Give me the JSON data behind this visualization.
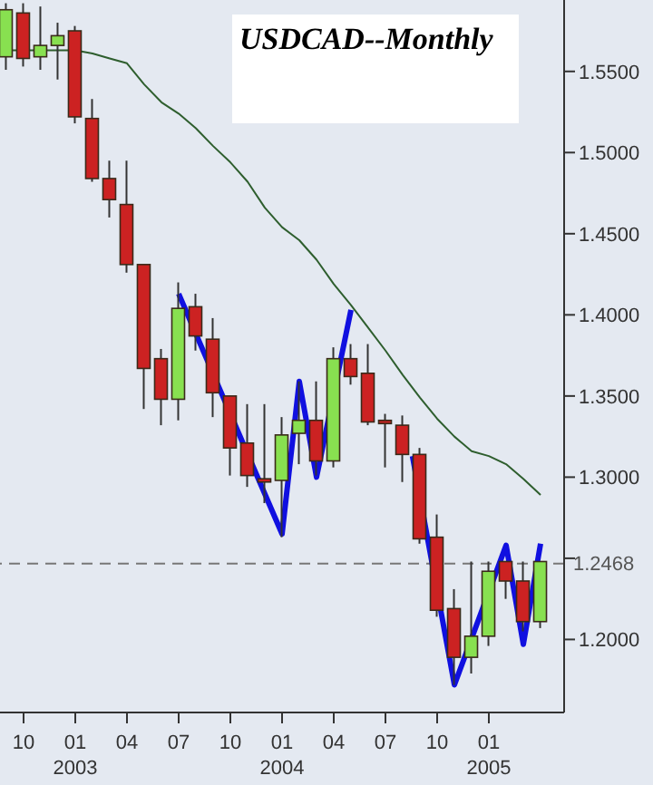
{
  "chart_data": {
    "type": "candlestick",
    "title": "USDCAD--Monthly",
    "x": [
      "2002-09",
      "2002-10",
      "2002-11",
      "2002-12",
      "2003-01",
      "2003-02",
      "2003-03",
      "2003-04",
      "2003-05",
      "2003-06",
      "2003-07",
      "2003-08",
      "2003-09",
      "2003-10",
      "2003-11",
      "2003-12",
      "2004-01",
      "2004-02",
      "2004-03",
      "2004-04",
      "2004-05",
      "2004-06",
      "2004-07",
      "2004-08",
      "2004-09",
      "2004-10",
      "2004-11",
      "2004-12",
      "2005-01",
      "2005-02",
      "2005-03",
      "2005-04"
    ],
    "ohlc": [
      [
        1.559,
        1.592,
        1.551,
        1.588
      ],
      [
        1.586,
        1.592,
        1.553,
        1.558
      ],
      [
        1.559,
        1.59,
        1.551,
        1.566
      ],
      [
        1.566,
        1.58,
        1.545,
        1.572
      ],
      [
        1.575,
        1.578,
        1.518,
        1.522
      ],
      [
        1.521,
        1.533,
        1.482,
        1.484
      ],
      [
        1.484,
        1.495,
        1.46,
        1.471
      ],
      [
        1.468,
        1.495,
        1.426,
        1.431
      ],
      [
        1.431,
        1.431,
        1.342,
        1.367
      ],
      [
        1.373,
        1.379,
        1.332,
        1.348
      ],
      [
        1.348,
        1.42,
        1.335,
        1.404
      ],
      [
        1.405,
        1.413,
        1.378,
        1.387
      ],
      [
        1.385,
        1.398,
        1.337,
        1.352
      ],
      [
        1.35,
        1.35,
        1.301,
        1.318
      ],
      [
        1.321,
        1.345,
        1.294,
        1.301
      ],
      [
        1.299,
        1.345,
        1.284,
        1.297
      ],
      [
        1.298,
        1.337,
        1.263,
        1.326
      ],
      [
        1.327,
        1.359,
        1.308,
        1.335
      ],
      [
        1.335,
        1.359,
        1.301,
        1.31
      ],
      [
        1.31,
        1.38,
        1.306,
        1.373
      ],
      [
        1.373,
        1.382,
        1.357,
        1.362
      ],
      [
        1.364,
        1.382,
        1.332,
        1.334
      ],
      [
        1.335,
        1.339,
        1.306,
        1.333
      ],
      [
        1.332,
        1.338,
        1.297,
        1.314
      ],
      [
        1.314,
        1.318,
        1.259,
        1.262
      ],
      [
        1.263,
        1.277,
        1.214,
        1.218
      ],
      [
        1.219,
        1.231,
        1.172,
        1.189
      ],
      [
        1.189,
        1.248,
        1.179,
        1.202
      ],
      [
        1.202,
        1.248,
        1.196,
        1.242
      ],
      [
        1.248,
        1.248,
        1.225,
        1.236
      ],
      [
        1.236,
        1.248,
        1.205,
        1.211
      ],
      [
        1.211,
        1.248,
        1.207,
        1.248
      ]
    ],
    "colors": [
      "#88e050",
      "#cc2222",
      "#88e050",
      "#88e050",
      "#cc2222",
      "#cc2222",
      "#cc2222",
      "#cc2222",
      "#cc2222",
      "#cc2222",
      "#88e050",
      "#cc2222",
      "#cc2222",
      "#cc2222",
      "#cc2222",
      "#cc2222",
      "#88e050",
      "#88e050",
      "#cc2222",
      "#88e050",
      "#cc2222",
      "#cc2222",
      "#cc2222",
      "#cc2222",
      "#cc2222",
      "#cc2222",
      "#cc2222",
      "#88e050",
      "#88e050",
      "#cc2222",
      "#cc2222",
      "#88e050"
    ],
    "series": [
      {
        "type": "line",
        "color": "#2e5e2e",
        "x": [
          "2002-09",
          "2002-10",
          "2002-11",
          "2002-12",
          "2003-01",
          "2003-02",
          "2003-03",
          "2003-04",
          "2003-05",
          "2003-06",
          "2003-07",
          "2003-08",
          "2003-09",
          "2003-10",
          "2003-11",
          "2003-12",
          "2004-01",
          "2004-02",
          "2004-03",
          "2004-04",
          "2004-05",
          "2004-06",
          "2004-07",
          "2004-08",
          "2004-09",
          "2004-10",
          "2004-11",
          "2004-12",
          "2005-01",
          "2005-02",
          "2005-03",
          "2005-04"
        ],
        "values": [
          1.563,
          1.563,
          1.563,
          1.563,
          1.563,
          1.561,
          1.558,
          1.555,
          1.542,
          1.531,
          1.524,
          1.515,
          1.504,
          1.494,
          1.482,
          1.466,
          1.454,
          1.446,
          1.434,
          1.419,
          1.406,
          1.392,
          1.378,
          1.363,
          1.349,
          1.336,
          1.325,
          1.316,
          1.313,
          1.308,
          1.299,
          1.289
        ]
      },
      {
        "type": "line",
        "color": "#1010e0",
        "x": [
          "2003-07",
          "2004-01",
          "2004-02",
          "2004-03",
          "2004-05"
        ],
        "values": [
          1.413,
          1.265,
          1.359,
          1.3,
          1.403
        ]
      },
      {
        "type": "line",
        "color": "#1010e0",
        "x": [
          "2004-08-18",
          "2004-11",
          "2005-02",
          "2005-03",
          "2005-04"
        ],
        "values": [
          1.313,
          1.172,
          1.258,
          1.197,
          1.259
        ]
      }
    ],
    "xlim": [
      "2002-08-20",
      "2005-05-12"
    ],
    "xticks": [
      {
        "value": "2002-10",
        "label": "10"
      },
      {
        "value": "2003-01",
        "label": "01\n2003"
      },
      {
        "value": "2003-04",
        "label": "04"
      },
      {
        "value": "2003-07",
        "label": "07"
      },
      {
        "value": "2003-10",
        "label": "10"
      },
      {
        "value": "2004-01",
        "label": "01\n2004"
      },
      {
        "value": "2004-04",
        "label": "04"
      },
      {
        "value": "2004-07",
        "label": "07"
      },
      {
        "value": "2004-10",
        "label": "10"
      },
      {
        "value": "2005-01",
        "label": "01\n2005"
      }
    ],
    "ylim": [
      1.155,
      1.594
    ],
    "yticks": [
      {
        "value": 1.2,
        "label": "1.2000"
      },
      {
        "value": 1.25,
        "label": null
      },
      {
        "value": 1.3,
        "label": "1.3000"
      },
      {
        "value": 1.35,
        "label": "1.3500"
      },
      {
        "value": 1.4,
        "label": "1.4000"
      },
      {
        "value": 1.45,
        "label": "1.4500"
      },
      {
        "value": 1.5,
        "label": "1.5000"
      },
      {
        "value": 1.55,
        "label": "1.5500"
      }
    ],
    "ref_lines": [
      {
        "axis": "y",
        "value": 1.2468,
        "label": "1.2468",
        "color": "#777777",
        "line_style": "dashed"
      }
    ],
    "marker": "none"
  }
}
